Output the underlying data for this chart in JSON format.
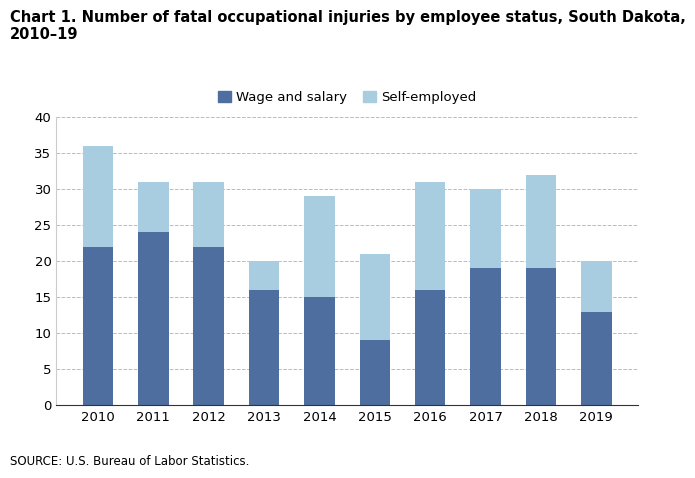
{
  "title_line1": "Chart 1. Number of fatal occupational injuries by employee status, South Dakota,",
  "title_line2": "2010–19",
  "years": [
    2010,
    2011,
    2012,
    2013,
    2014,
    2015,
    2016,
    2017,
    2018,
    2019
  ],
  "wage_and_salary": [
    22,
    24,
    22,
    16,
    15,
    9,
    16,
    19,
    19,
    13
  ],
  "self_employed": [
    14,
    7,
    9,
    4,
    14,
    12,
    15,
    11,
    13,
    7
  ],
  "wage_color": "#4d6e9e",
  "self_color": "#a8cce0",
  "ylim": [
    0,
    40
  ],
  "yticks": [
    0,
    5,
    10,
    15,
    20,
    25,
    30,
    35,
    40
  ],
  "legend_wage": "Wage and salary",
  "legend_self": "Self-employed",
  "source": "SOURCE: U.S. Bureau of Labor Statistics.",
  "background_color": "#ffffff",
  "grid_color": "#bbbbbb",
  "title_fontsize": 10.5,
  "tick_fontsize": 9.5,
  "legend_fontsize": 9.5,
  "source_fontsize": 8.5,
  "bar_width": 0.55
}
